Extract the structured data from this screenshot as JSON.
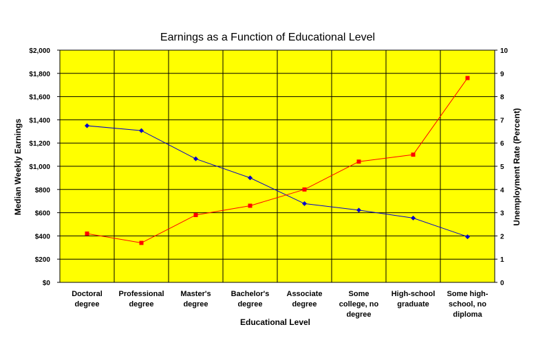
{
  "chart_data": {
    "type": "line",
    "title": "Earnings as a Function of Educational Level",
    "xlabel": "Educational Level",
    "ylabel": "Median Weekly Earnings",
    "y2label": "Unemployment Rate (Percent)",
    "ylim": [
      0,
      2000
    ],
    "y2lim": [
      0,
      10
    ],
    "yticks": [
      "$0",
      "$200",
      "$400",
      "$600",
      "$800",
      "$1,000",
      "$1,200",
      "$1,400",
      "$1,600",
      "$1,800",
      "$2,000"
    ],
    "y2ticks": [
      "0",
      "1",
      "2",
      "3",
      "4",
      "5",
      "6",
      "7",
      "8",
      "9",
      "10"
    ],
    "categories": [
      [
        "Doctoral",
        "degree"
      ],
      [
        "Professional",
        "degree"
      ],
      [
        "Master's",
        "degree"
      ],
      [
        "Bachelor's",
        "degree"
      ],
      [
        "Associate",
        "degree"
      ],
      [
        "Some",
        "college, no",
        "degree"
      ],
      [
        "High-school",
        "graduate"
      ],
      [
        "Some high-",
        "school, no",
        "diploma"
      ]
    ],
    "grid": true,
    "legend": "none",
    "series": [
      {
        "axis": "left",
        "color": "#0000cc",
        "marker": "diamond",
        "values": [
          1349,
          1307,
          1064,
          900,
          678,
          622,
          554,
          393
        ]
      },
      {
        "axis": "right",
        "color": "#ff0000",
        "marker": "square",
        "values": [
          2.1,
          1.7,
          2.9,
          3.3,
          4.0,
          5.2,
          5.5,
          8.8
        ]
      }
    ],
    "colors": {
      "plot_bg": "#ffff00",
      "grid": "#000000"
    }
  }
}
